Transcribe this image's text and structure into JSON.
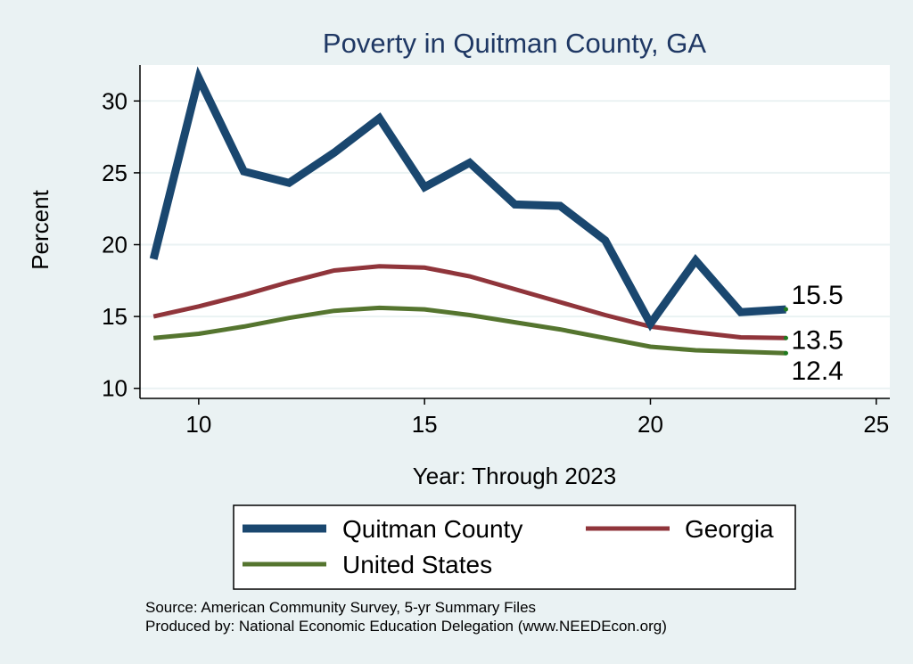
{
  "chart_data": {
    "type": "line",
    "title": "Poverty in Quitman County, GA",
    "xlabel": "Year: Through 2023",
    "ylabel": "Percent",
    "xlim": [
      8.7,
      25.3
    ],
    "ylim": [
      9.3,
      32.5
    ],
    "xticks": [
      10,
      15,
      20,
      25
    ],
    "yticks": [
      10,
      15,
      20,
      25,
      30
    ],
    "grid": true,
    "legend_position": "bottom",
    "x": [
      9,
      10,
      11,
      12,
      13,
      14,
      15,
      16,
      17,
      18,
      19,
      20,
      21,
      22,
      23
    ],
    "series": [
      {
        "name": "Quitman County",
        "color": "#1a476f",
        "values": [
          19.0,
          31.6,
          25.1,
          24.3,
          26.4,
          28.8,
          24.0,
          25.7,
          22.8,
          22.7,
          20.3,
          14.5,
          18.9,
          15.3,
          15.5
        ],
        "end_label": "15.5"
      },
      {
        "name": "Georgia",
        "color": "#90353b",
        "values": [
          15.0,
          15.7,
          16.5,
          17.4,
          18.2,
          18.5,
          18.4,
          17.8,
          16.9,
          16.0,
          15.1,
          14.3,
          13.9,
          13.55,
          13.5
        ],
        "end_label": "13.5"
      },
      {
        "name": "United States",
        "color": "#55752f",
        "values": [
          13.5,
          13.8,
          14.3,
          14.9,
          15.4,
          15.6,
          15.5,
          15.1,
          14.6,
          14.1,
          13.5,
          12.9,
          12.65,
          12.55,
          12.45
        ],
        "end_label": "12.4"
      }
    ]
  },
  "source_lines": [
    "Source: American Community Survey, 5-yr Summary Files",
    "Produced by: National Economic Education Delegation (www.NEEDEcon.org)"
  ]
}
